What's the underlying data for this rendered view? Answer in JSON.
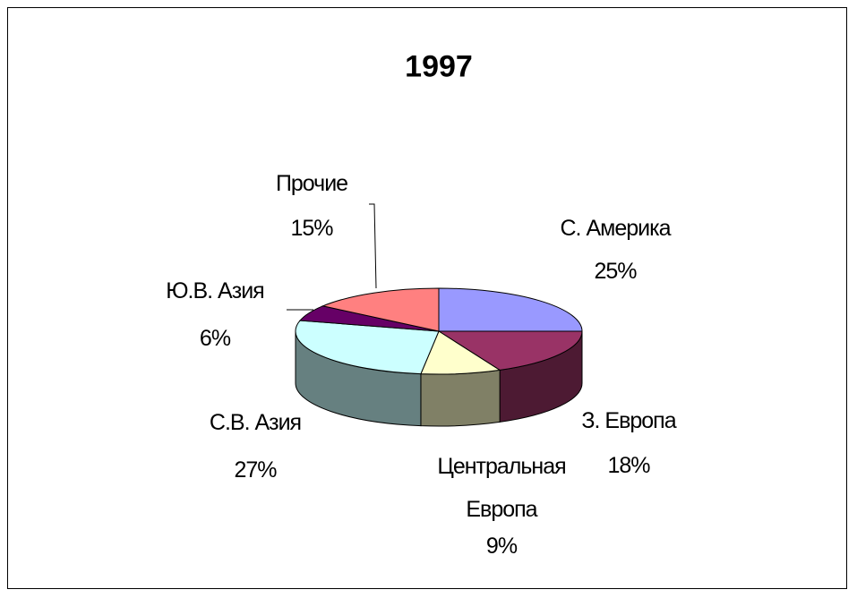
{
  "chart_data": {
    "type": "pie",
    "title": "1997",
    "categories": [
      "С. Америка",
      "З. Европа",
      "Центральная\nЕвропа",
      "С.В. Азия",
      "Ю.В. Азия",
      "Прочие"
    ],
    "values": [
      25,
      18,
      9,
      27,
      6,
      15
    ],
    "value_labels": [
      "25%",
      "18%",
      "9%",
      "27%",
      "6%",
      "15%"
    ],
    "colors": [
      "#9999ff",
      "#993366",
      "#ffffcc",
      "#ccffff",
      "#660066",
      "#ff8080"
    ]
  }
}
